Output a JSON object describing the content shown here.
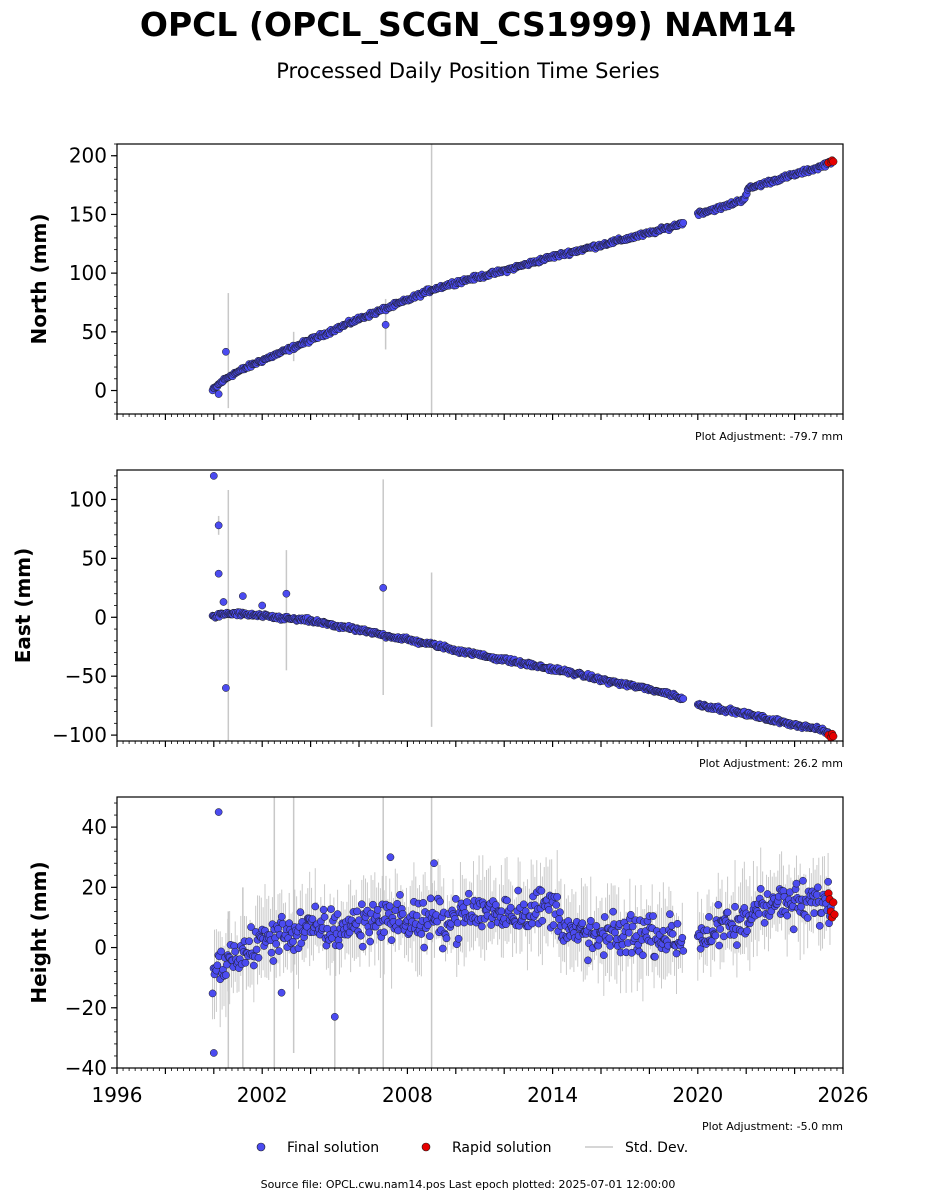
{
  "title": "OPCL (OPCL_SCGN_CS1999) NAM14",
  "subtitle": "Processed Daily Position Time Series",
  "colors": {
    "final": "#4b4bf0",
    "rapid": "#e60000",
    "stddev": "#c8c8c8",
    "edge": "#1a1a1a"
  },
  "legend": {
    "final": "Final solution",
    "rapid": "Rapid solution",
    "stddev": "Std. Dev."
  },
  "footer": "Source file: OPCL.cwu.nam14.pos  Last epoch plotted: 2025-07-01 12:00:00",
  "chart_data": [
    {
      "type": "scatter",
      "ylabel": "North (mm)",
      "xlim": [
        1996,
        2026
      ],
      "ylim": [
        -20,
        210
      ],
      "yticks": [
        0,
        50,
        100,
        150,
        200
      ],
      "adjustment": "Plot Adjustment: -79.7 mm",
      "segments": [
        {
          "x": [
            1999.95,
            2000.3,
            2000.7,
            2001.2,
            2001.8,
            2002.5,
            2003.2,
            2004.0,
            2005.0,
            2006.0,
            2007.0,
            2008.0,
            2009.0,
            2010.0,
            2011.0,
            2012.0,
            2013.0,
            2014.0,
            2015.0,
            2016.0,
            2017.0,
            2018.0,
            2019.0,
            2019.4
          ],
          "y": [
            0,
            7,
            13,
            18,
            24,
            30,
            36,
            43,
            52,
            61,
            69,
            77,
            86,
            92,
            97,
            102,
            108,
            114,
            119,
            124,
            129,
            134,
            140,
            143
          ]
        },
        {
          "x": [
            2020.0,
            2021.0,
            2021.9,
            2022.1,
            2023.0,
            2024.0,
            2025.0,
            2025.5
          ],
          "y": [
            151,
            156,
            163,
            172,
            178,
            184,
            190,
            195
          ]
        }
      ],
      "noise": 1.5,
      "outliers": [
        {
          "x": 2000.5,
          "y": 33
        },
        {
          "x": 2007.1,
          "y": 56
        },
        {
          "x": 2000.2,
          "y": -3
        }
      ],
      "error_bars": [
        {
          "x": 2009.0,
          "y0": -20,
          "y1": 210
        },
        {
          "x": 2000.6,
          "y0": -15,
          "y1": 83
        },
        {
          "x": 2003.3,
          "y0": 25,
          "y1": 50
        },
        {
          "x": 2007.1,
          "y0": 35,
          "y1": 78
        }
      ],
      "rapid": {
        "x": [
          2025.4,
          2025.5,
          2025.55,
          2025.6
        ],
        "y": [
          194,
          195,
          196,
          195
        ]
      }
    },
    {
      "type": "scatter",
      "ylabel": "East (mm)",
      "xlim": [
        1996,
        2026
      ],
      "ylim": [
        -105,
        125
      ],
      "yticks": [
        -100,
        -50,
        0,
        50,
        100
      ],
      "adjustment": "Plot Adjustment: 26.2 mm",
      "segments": [
        {
          "x": [
            1999.95,
            2000.5,
            2001.0,
            2002.0,
            2003.0,
            2004.0,
            2005.0,
            2006.0,
            2007.0,
            2008.0,
            2009.0,
            2010.0,
            2011.0,
            2012.0,
            2013.0,
            2014.0,
            2015.0,
            2016.0,
            2017.0,
            2018.0,
            2019.0,
            2019.4
          ],
          "y": [
            0,
            3,
            3,
            1,
            -1,
            -3,
            -7,
            -11,
            -15,
            -19,
            -23,
            -28,
            -32,
            -36,
            -40,
            -44,
            -48,
            -53,
            -57,
            -61,
            -66,
            -70
          ]
        },
        {
          "x": [
            2020.0,
            2021.0,
            2022.0,
            2023.0,
            2024.0,
            2025.0,
            2025.5
          ],
          "y": [
            -74,
            -78,
            -82,
            -87,
            -91,
            -95,
            -99
          ]
        }
      ],
      "noise": 1.5,
      "outliers": [
        {
          "x": 2000.0,
          "y": 120
        },
        {
          "x": 2000.2,
          "y": 78
        },
        {
          "x": 2000.2,
          "y": 37
        },
        {
          "x": 2000.5,
          "y": -60
        },
        {
          "x": 2001.2,
          "y": 18
        },
        {
          "x": 2002.0,
          "y": 10
        },
        {
          "x": 2003.0,
          "y": 20
        },
        {
          "x": 2007.0,
          "y": 25
        },
        {
          "x": 2000.4,
          "y": 13
        }
      ],
      "error_bars": [
        {
          "x": 2000.6,
          "y0": -105,
          "y1": 108
        },
        {
          "x": 2003.0,
          "y0": -45,
          "y1": 57
        },
        {
          "x": 2007.0,
          "y0": -66,
          "y1": 117
        },
        {
          "x": 2009.0,
          "y0": -93,
          "y1": 38
        },
        {
          "x": 2000.2,
          "y0": 70,
          "y1": 86
        }
      ],
      "rapid": {
        "x": [
          2025.4,
          2025.5,
          2025.55,
          2025.6
        ],
        "y": [
          -100,
          -102,
          -99,
          -101
        ]
      }
    },
    {
      "type": "scatter",
      "ylabel": "Height (mm)",
      "xlim": [
        1996,
        2026
      ],
      "ylim": [
        -40,
        50
      ],
      "yticks": [
        -40,
        -20,
        0,
        20,
        40
      ],
      "xticks": [
        1996,
        2002,
        2008,
        2014,
        2020,
        2026
      ],
      "adjustment": "Plot Adjustment: -5.0 mm",
      "segments": [
        {
          "x": [
            1999.95,
            2000.5,
            2001.0,
            2002.0,
            2003.0,
            2004.0,
            2005.0,
            2006.0,
            2007.0,
            2008.0,
            2009.0,
            2010.0,
            2011.0,
            2012.0,
            2013.0,
            2014.0,
            2014.8,
            2015.0,
            2016.0,
            2017.0,
            2018.0,
            2019.0,
            2019.4
          ],
          "y": [
            -10,
            -5,
            -3,
            2,
            5,
            6,
            6,
            8,
            10,
            9,
            8,
            10,
            12,
            12,
            12,
            14,
            4,
            4,
            3,
            4,
            5,
            3,
            2
          ]
        },
        {
          "x": [
            2020.0,
            2021.0,
            2022.0,
            2022.6,
            2023.0,
            2024.0,
            2025.0,
            2025.5
          ],
          "y": [
            4,
            6,
            8,
            16,
            15,
            14,
            15,
            14
          ]
        }
      ],
      "noise": 6,
      "outliers": [
        {
          "x": 2000.2,
          "y": 45
        },
        {
          "x": 2005.0,
          "y": -23
        },
        {
          "x": 2002.8,
          "y": -15
        },
        {
          "x": 2007.3,
          "y": 30
        },
        {
          "x": 2009.1,
          "y": 28
        },
        {
          "x": 2000.0,
          "y": -35
        }
      ],
      "error_bars": [
        {
          "x": 2000.6,
          "y0": -40,
          "y1": 12
        },
        {
          "x": 2002.5,
          "y0": -40,
          "y1": 50
        },
        {
          "x": 2003.3,
          "y0": -35,
          "y1": 50
        },
        {
          "x": 2007.0,
          "y0": -40,
          "y1": 50
        },
        {
          "x": 2009.0,
          "y0": -40,
          "y1": 50
        },
        {
          "x": 2001.2,
          "y0": -40,
          "y1": 20
        },
        {
          "x": 2005.0,
          "y0": -40,
          "y1": 10
        }
      ],
      "rapid": {
        "x": [
          2025.4,
          2025.45,
          2025.5,
          2025.55,
          2025.6,
          2025.65
        ],
        "y": [
          18,
          16,
          12,
          10,
          15,
          11
        ]
      }
    }
  ]
}
